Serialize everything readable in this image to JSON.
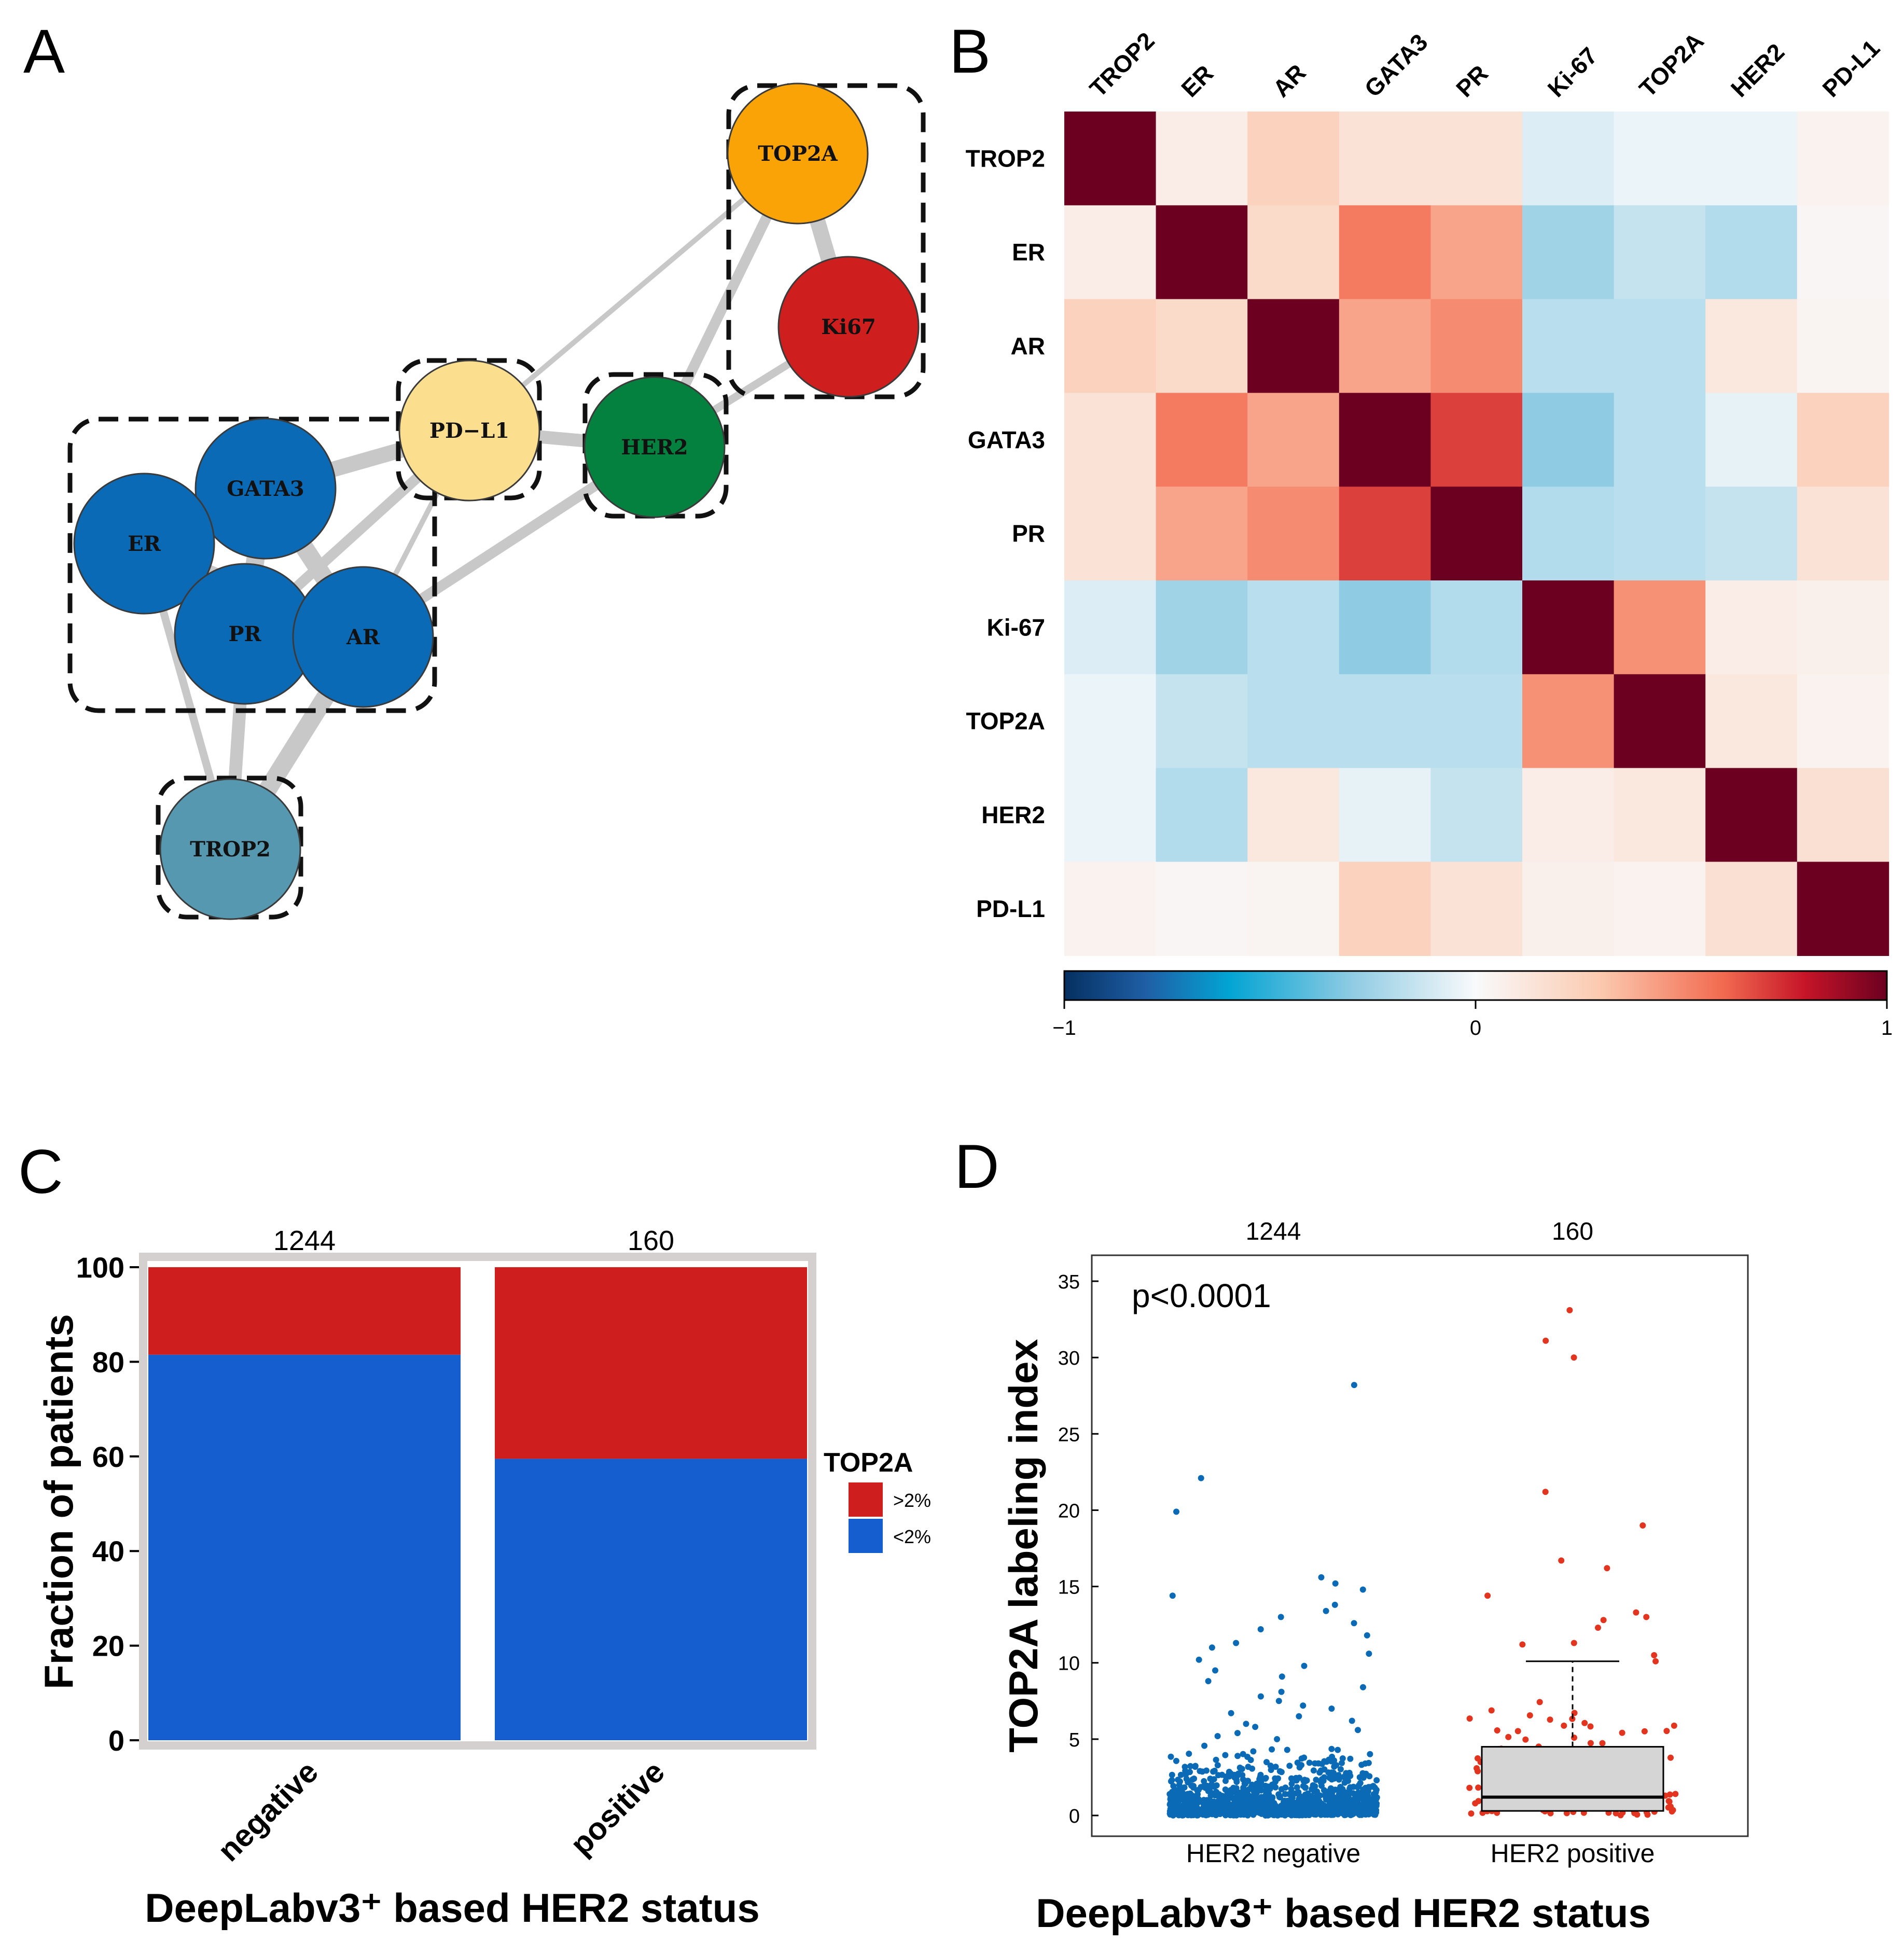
{
  "panels": {
    "a": "A",
    "b": "B",
    "c": "C",
    "d": "D"
  },
  "chart_data": [
    {
      "type": "network",
      "nodes": [
        {
          "id": "TOP2A",
          "color": "#FAA307"
        },
        {
          "id": "Ki67",
          "color": "#CF1E1E"
        },
        {
          "id": "PD-L1",
          "label": "PD−L1",
          "color": "#FCDF8E"
        },
        {
          "id": "HER2",
          "color": "#05813F"
        },
        {
          "id": "GATA3",
          "color": "#0A6AB5"
        },
        {
          "id": "ER",
          "color": "#0A6AB5"
        },
        {
          "id": "PR",
          "color": "#0A6AB5"
        },
        {
          "id": "AR",
          "color": "#0A6AB5"
        },
        {
          "id": "TROP2",
          "color": "#5598B0"
        }
      ],
      "edges": [
        {
          "source": "TOP2A",
          "target": "Ki67",
          "weight": 5
        },
        {
          "source": "TOP2A",
          "target": "HER2",
          "weight": 3
        },
        {
          "source": "TOP2A",
          "target": "PD-L1",
          "weight": 1
        },
        {
          "source": "Ki67",
          "target": "HER2",
          "weight": 2
        },
        {
          "source": "PD-L1",
          "target": "HER2",
          "weight": 4
        },
        {
          "source": "PD-L1",
          "target": "GATA3",
          "weight": 5
        },
        {
          "source": "PD-L1",
          "target": "PR",
          "weight": 3
        },
        {
          "source": "PD-L1",
          "target": "AR",
          "weight": 1
        },
        {
          "source": "HER2",
          "target": "AR",
          "weight": 3
        },
        {
          "source": "GATA3",
          "target": "ER",
          "weight": 5
        },
        {
          "source": "GATA3",
          "target": "PR",
          "weight": 6
        },
        {
          "source": "GATA3",
          "target": "AR",
          "weight": 6
        },
        {
          "source": "ER",
          "target": "PR",
          "weight": 6
        },
        {
          "source": "ER",
          "target": "AR",
          "weight": 4
        },
        {
          "source": "PR",
          "target": "AR",
          "weight": 6
        },
        {
          "source": "ER",
          "target": "TROP2",
          "weight": 2
        },
        {
          "source": "PR",
          "target": "TROP2",
          "weight": 4
        },
        {
          "source": "AR",
          "target": "TROP2",
          "weight": 6
        }
      ],
      "clusters": [
        [
          "TOP2A",
          "Ki67"
        ],
        [
          "PD-L1"
        ],
        [
          "HER2"
        ],
        [
          "GATA3",
          "ER",
          "PR",
          "AR"
        ],
        [
          "TROP2"
        ]
      ]
    },
    {
      "type": "heatmap",
      "labels": [
        "TROP2",
        "ER",
        "AR",
        "GATA3",
        "PR",
        "Ki-67",
        "TOP2A",
        "HER2",
        "PD-L1"
      ],
      "values": [
        [
          1.0,
          0.08,
          0.25,
          0.15,
          0.15,
          -0.08,
          -0.04,
          -0.04,
          0.05
        ],
        [
          0.08,
          1.0,
          0.2,
          0.55,
          0.42,
          -0.25,
          -0.15,
          -0.2,
          0.03
        ],
        [
          0.25,
          0.2,
          1.0,
          0.42,
          0.5,
          -0.18,
          -0.18,
          0.12,
          0.04
        ],
        [
          0.15,
          0.55,
          0.42,
          1.0,
          0.7,
          -0.3,
          -0.18,
          -0.05,
          0.25
        ],
        [
          0.15,
          0.42,
          0.5,
          0.7,
          1.0,
          -0.2,
          -0.18,
          -0.15,
          0.15
        ],
        [
          -0.08,
          -0.25,
          -0.18,
          -0.3,
          -0.2,
          1.0,
          0.48,
          0.08,
          0.06
        ],
        [
          -0.04,
          -0.15,
          -0.18,
          -0.18,
          -0.18,
          0.48,
          1.0,
          0.12,
          0.05
        ],
        [
          -0.04,
          -0.2,
          0.12,
          -0.05,
          -0.15,
          0.08,
          0.12,
          1.0,
          0.16
        ],
        [
          0.05,
          0.03,
          0.04,
          0.25,
          0.15,
          0.06,
          0.05,
          0.16,
          1.0
        ]
      ],
      "scale": {
        "min": -1,
        "max": 1,
        "ticks": [
          "−1",
          "0",
          "1"
        ]
      }
    },
    {
      "type": "bar",
      "stacked": true,
      "categories": [
        "negative",
        "positive"
      ],
      "top_labels": [
        "1244",
        "160"
      ],
      "series": [
        {
          "name": "<2%",
          "values": [
            81.5,
            59.5
          ],
          "color": "#145ECF"
        },
        {
          "name": ">2%",
          "values": [
            18.5,
            40.5
          ],
          "color": "#CF1E1E"
        }
      ],
      "ylabel": "Fraction of patients",
      "xlabel": "DeepLabv3⁺ based HER2 status",
      "ylim": [
        0,
        100
      ],
      "yticks": [
        "0",
        "20",
        "40",
        "60",
        "80",
        "100"
      ],
      "legend_title": "TOP2A",
      "legend_position": "right",
      "grid": false
    },
    {
      "type": "scatter",
      "categories": [
        "HER2 negative",
        "HER2 positive"
      ],
      "top_labels": [
        "1244",
        "160"
      ],
      "annotation": "p<0.0001",
      "ylabel": "TOP2A labeling index",
      "xlabel": "DeepLabv3⁺ based HER2 status",
      "ylim": [
        0,
        35
      ],
      "yticks": [
        "0",
        "5",
        "10",
        "15",
        "20",
        "25",
        "30",
        "35"
      ],
      "colors": [
        "#0A6AB5",
        "#E2341E"
      ],
      "negative_outliers": [
        28.2,
        22.1,
        19.9,
        15.6,
        15.2,
        14.8,
        14.4,
        13.8,
        13.4,
        13.0,
        12.6,
        12.2,
        11.8,
        11.3,
        11.0,
        10.6,
        10.2,
        9.8,
        9.5,
        9.1,
        8.8,
        8.4,
        8.1,
        7.8,
        7.5,
        7.2,
        7.0,
        6.7,
        6.5,
        6.2,
        6.0,
        5.8,
        5.6,
        5.4,
        5.2,
        5.0
      ],
      "positive_outliers": [
        33.1,
        31.1,
        30.0,
        21.2,
        19.0,
        16.7,
        16.2,
        14.4,
        13.3,
        13.0,
        12.8,
        12.3,
        11.3,
        11.2,
        10.5,
        10.1
      ],
      "positive_box": {
        "q1": 0.3,
        "median": 1.2,
        "q3": 4.5,
        "whisker_high": 10.1,
        "whisker_low": 0
      }
    }
  ]
}
